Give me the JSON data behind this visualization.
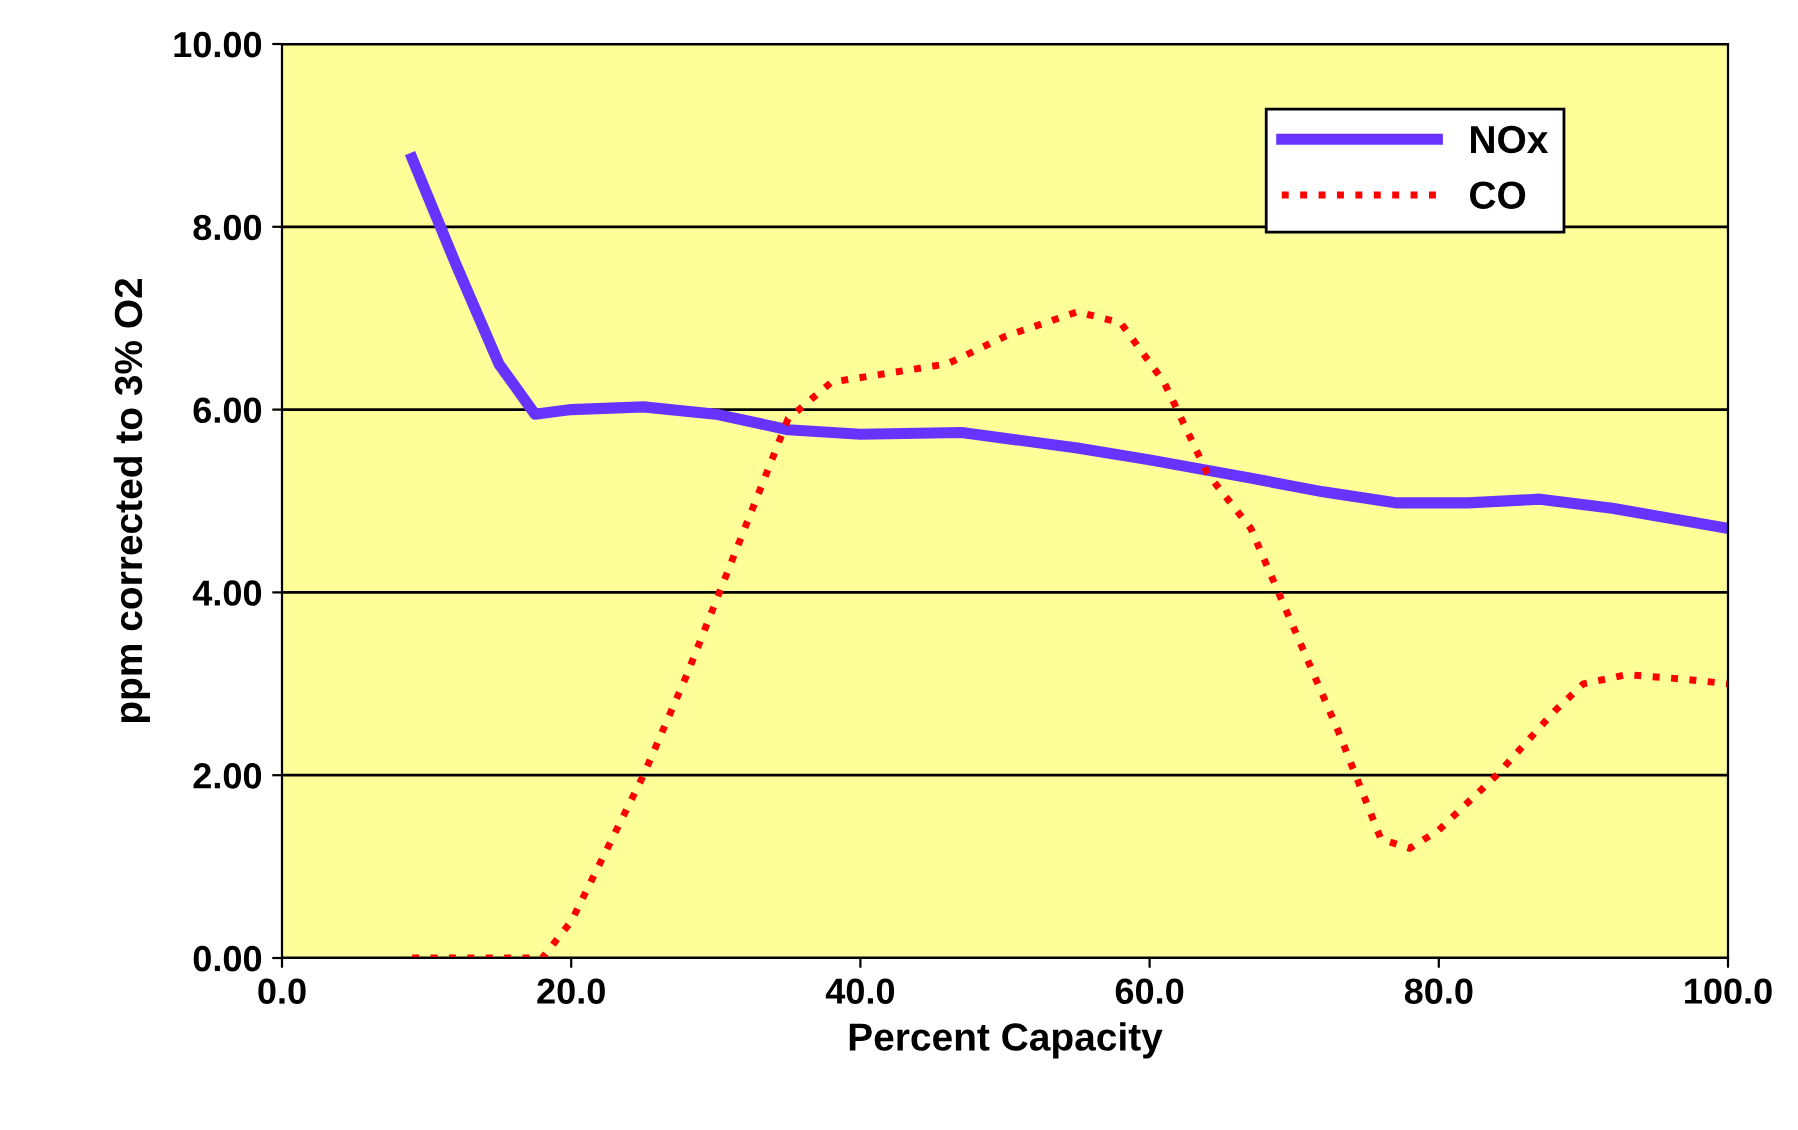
{
  "chart_data": {
    "type": "line",
    "xlabel": "Percent Capacity",
    "ylabel": "ppm corrected to 3% O2",
    "xlim": [
      0,
      100
    ],
    "xticks": [
      {
        "value": 0,
        "label": "0.0"
      },
      {
        "value": 20,
        "label": "20.0"
      },
      {
        "value": 40,
        "label": "40.0"
      },
      {
        "value": 60,
        "label": "60.0"
      },
      {
        "value": 80,
        "label": "80.0"
      },
      {
        "value": 100,
        "label": "100.0"
      }
    ],
    "ylim": [
      0,
      10
    ],
    "yticks": [
      {
        "value": 0,
        "label": "0.00"
      },
      {
        "value": 2,
        "label": "2.00"
      },
      {
        "value": 4,
        "label": "4.00"
      },
      {
        "value": 6,
        "label": "6.00"
      },
      {
        "value": 8,
        "label": "8.00"
      },
      {
        "value": 10,
        "label": "10.00"
      }
    ],
    "grid": "y",
    "legend": "top right",
    "marker": "none",
    "series": [
      {
        "name": "NOx",
        "color": "#6633ff",
        "line_style": "solid",
        "x": [
          9,
          12,
          15,
          17.5,
          20,
          25,
          30,
          35,
          40,
          47,
          55,
          60,
          67,
          72,
          77,
          82,
          87,
          92,
          100
        ],
        "values": [
          8.75,
          7.6,
          6.5,
          5.95,
          6.0,
          6.03,
          5.95,
          5.78,
          5.73,
          5.75,
          5.58,
          5.45,
          5.25,
          5.1,
          4.98,
          4.98,
          5.02,
          4.92,
          4.7
        ]
      },
      {
        "name": "CO",
        "color": "#ff0000",
        "line_style": "dotted",
        "x": [
          9,
          14,
          18,
          20,
          25,
          28,
          31,
          33,
          35,
          38,
          42,
          46,
          50,
          55,
          58,
          61,
          64,
          67,
          70,
          73,
          76,
          78,
          80,
          84,
          88,
          90,
          93,
          97,
          100
        ],
        "values": [
          0,
          0,
          0,
          0.4,
          2.0,
          3.1,
          4.3,
          5.1,
          5.9,
          6.3,
          6.4,
          6.5,
          6.8,
          7.07,
          6.95,
          6.3,
          5.3,
          4.7,
          3.6,
          2.5,
          1.3,
          1.2,
          1.4,
          2.0,
          2.7,
          3.0,
          3.1,
          3.05,
          3.0
        ]
      }
    ]
  }
}
